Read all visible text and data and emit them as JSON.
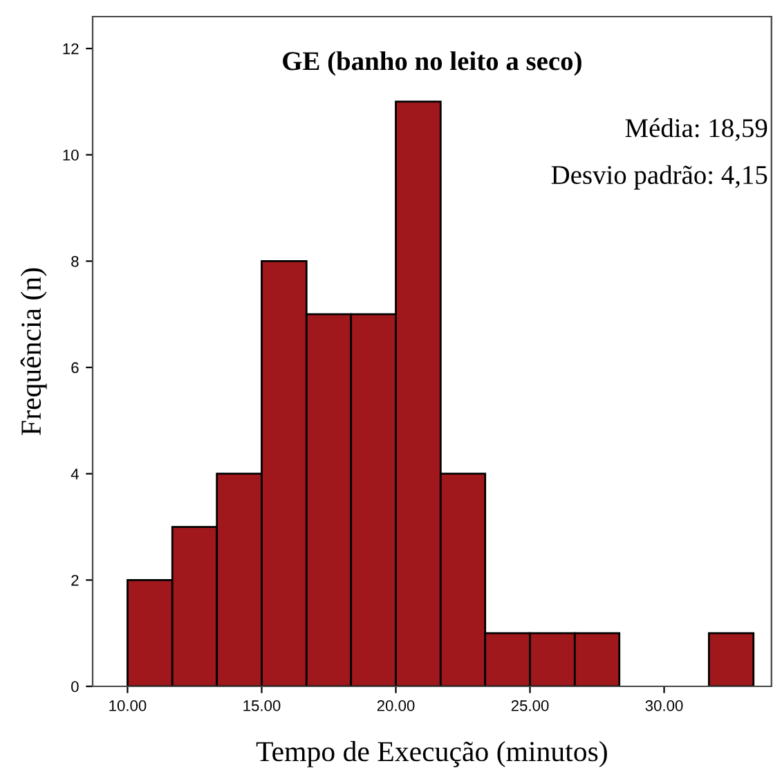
{
  "chart_data": {
    "type": "histogram",
    "title": "GE (banho no leito a seco)",
    "xlabel": "Tempo de Execução (minutos)",
    "ylabel": "Frequência (n)",
    "bins": [
      10.0,
      11.67,
      13.33,
      15.0,
      16.67,
      18.33,
      20.0,
      21.67,
      23.33,
      25.0,
      26.67,
      28.33,
      30.0,
      31.67,
      33.33
    ],
    "values": [
      2,
      3,
      4,
      8,
      7,
      7,
      11,
      4,
      1,
      1,
      1,
      0,
      0,
      1
    ],
    "color": "#a0181c",
    "xlim": [
      8.7,
      34.0
    ],
    "xticks": [
      {
        "value": 10,
        "label": "10.00"
      },
      {
        "value": 15,
        "label": "15.00"
      },
      {
        "value": 20,
        "label": "20.00"
      },
      {
        "value": 25,
        "label": "25.00"
      },
      {
        "value": 30,
        "label": "30.00"
      }
    ],
    "ylim": [
      0,
      12.6
    ],
    "yticks": [
      0,
      2,
      4,
      6,
      8,
      10,
      12
    ],
    "annotations": [
      "Média: 18,59",
      "Desvio padrão: 4,15"
    ]
  }
}
